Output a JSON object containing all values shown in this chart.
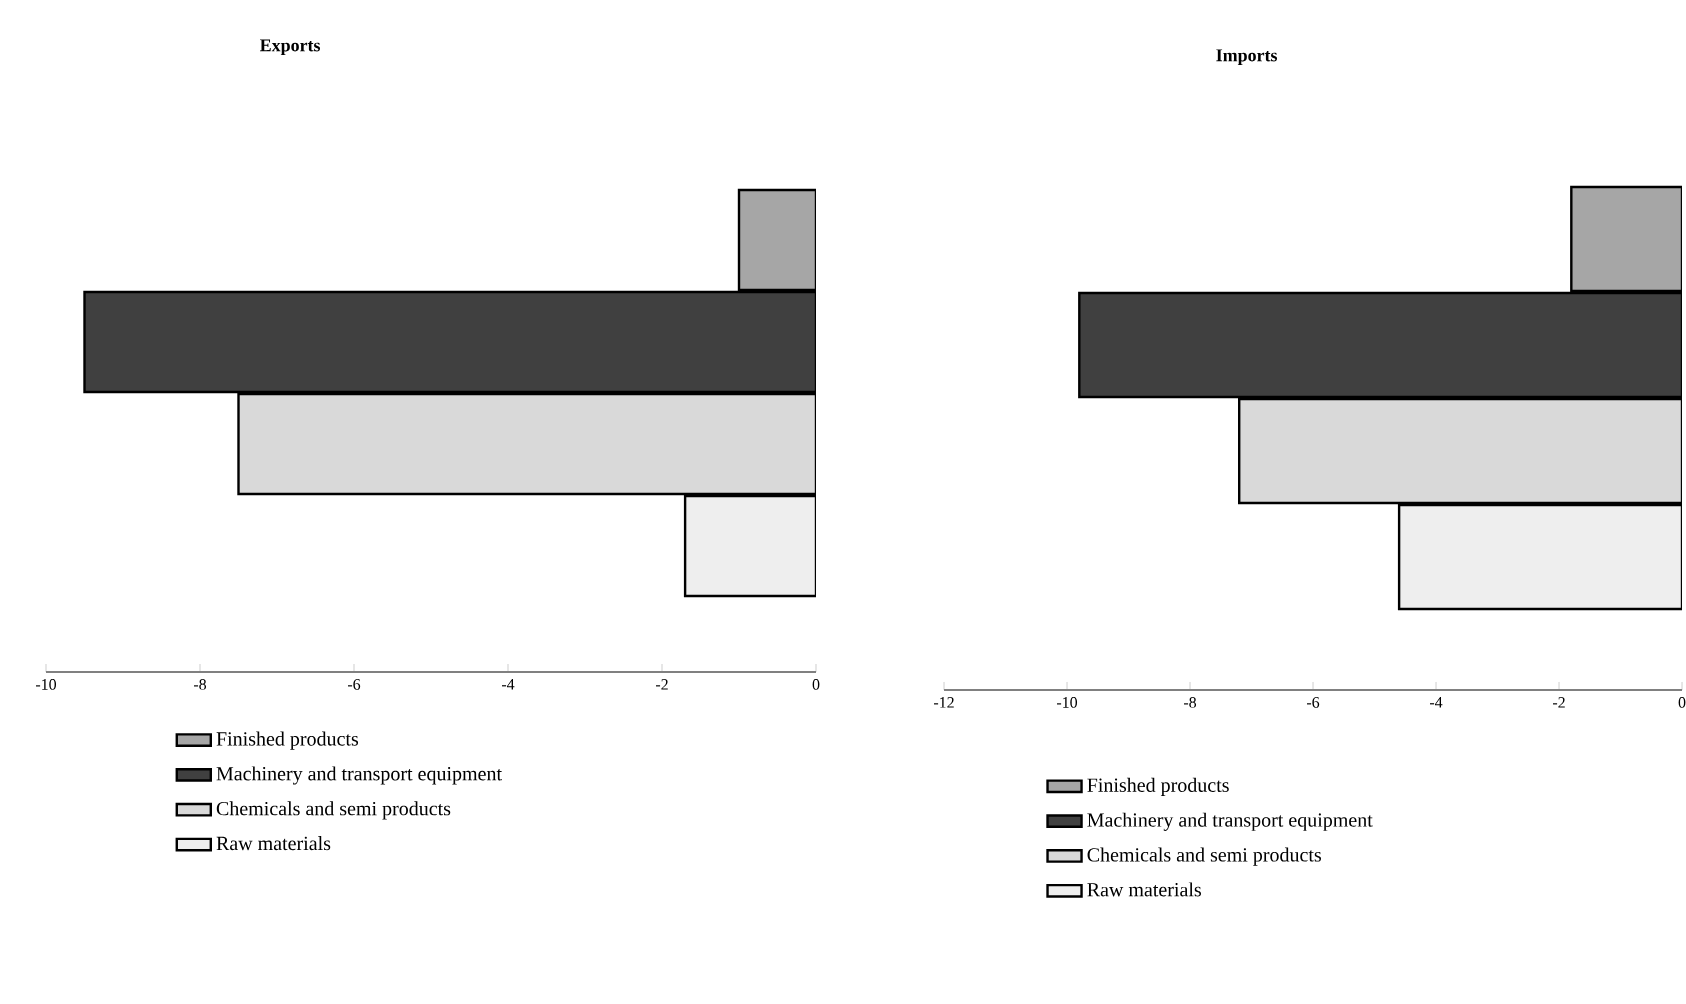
{
  "chart_data": [
    {
      "type": "bar",
      "orientation": "horizontal",
      "title": "Exports",
      "categories": [
        null
      ],
      "series": [
        {
          "name": "Finished products",
          "color": "#a6a6a6",
          "values": [
            -1.0
          ]
        },
        {
          "name": "Machinery and transport equipment",
          "color": "#404040",
          "values": [
            -9.5
          ]
        },
        {
          "name": "Chemicals and semi products",
          "color": "#d9d9d9",
          "values": [
            -7.5
          ]
        },
        {
          "name": "Raw materials",
          "color": "#eeeeee",
          "values": [
            -1.7
          ]
        }
      ],
      "xlim": [
        -10,
        0
      ],
      "xticks": [
        -10,
        -8,
        -6,
        -4,
        -2,
        0
      ],
      "legend": "bottom"
    },
    {
      "type": "bar",
      "orientation": "horizontal",
      "title": "Imports",
      "categories": [
        null
      ],
      "series": [
        {
          "name": "Finished products",
          "color": "#a6a6a6",
          "values": [
            -1.8
          ]
        },
        {
          "name": "Machinery and transport equipment",
          "color": "#404040",
          "values": [
            -9.8
          ]
        },
        {
          "name": "Chemicals and semi products",
          "color": "#d9d9d9",
          "values": [
            -7.2
          ]
        },
        {
          "name": "Raw materials",
          "color": "#eeeeee",
          "values": [
            -4.6
          ]
        }
      ],
      "xlim": [
        -12,
        0
      ],
      "xticks": [
        -12,
        -10,
        -8,
        -6,
        -4,
        -2,
        0
      ],
      "legend": "bottom"
    }
  ]
}
